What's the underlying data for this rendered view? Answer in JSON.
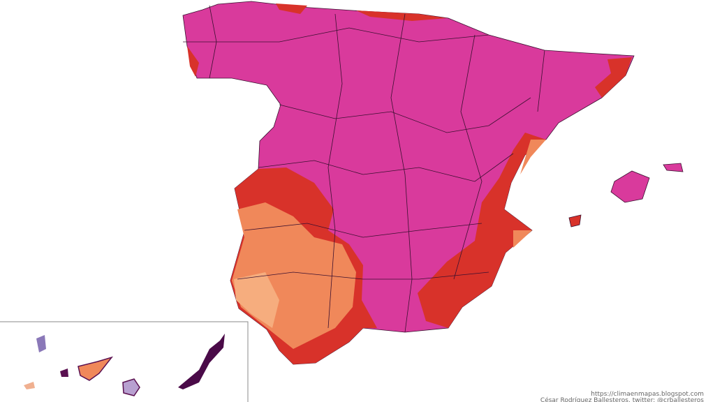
{
  "credits": {
    "url": "https://climaenmapas.blogspot.com",
    "author": "César Rodríguez Ballesteros. twitter: @crballesteros"
  }
}
